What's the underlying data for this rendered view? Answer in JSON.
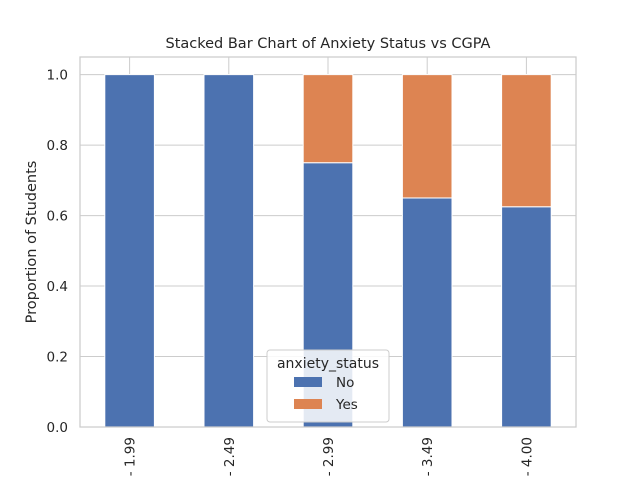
{
  "chart_data": {
    "type": "bar",
    "stacked": true,
    "title": "Stacked Bar Chart of Anxiety Status vs CGPA",
    "xlabel": "",
    "ylabel": "Proportion of Students",
    "categories": [
      "- 1.99",
      "- 2.49",
      "- 2.99",
      "- 3.49",
      "- 4.00"
    ],
    "series": [
      {
        "name": "No",
        "color": "#4c72b0",
        "values": [
          1.0,
          1.0,
          0.75,
          0.65,
          0.625
        ]
      },
      {
        "name": "Yes",
        "color": "#dd8452",
        "values": [
          0.0,
          0.0,
          0.25,
          0.35,
          0.375
        ]
      }
    ],
    "ylim": [
      0,
      1.05
    ],
    "yticks": [
      "0.0",
      "0.2",
      "0.4",
      "0.6",
      "0.8",
      "1.0"
    ],
    "grid": true,
    "legend": {
      "title": "anxiety_status",
      "placement": "bottom-center"
    }
  }
}
